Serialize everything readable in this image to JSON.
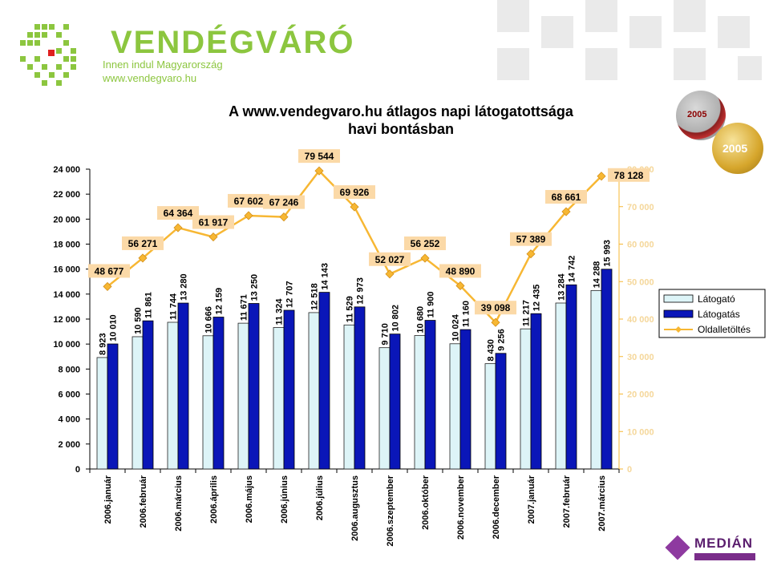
{
  "header": {
    "brand": "VENDÉGVÁRÓ",
    "tagline": "Innen indul Magyarország",
    "site": "www.vendegvaro.hu"
  },
  "badges": {
    "first": "2005",
    "second": "2005"
  },
  "footer": {
    "logo_text": "MEDIÁN"
  },
  "chart_data": {
    "type": "bar",
    "title": [
      "A www.vendegvaro.hu átlagos napi látogatottsága",
      "havi bontásban"
    ],
    "categories": [
      "2006.január",
      "2006.február",
      "2006.március",
      "2006.április",
      "2006.május",
      "2006.június",
      "2006.július",
      "2006.augusztus",
      "2006.szeptember",
      "2006.október",
      "2006.november",
      "2006.december",
      "2007.január",
      "2007.február",
      "2007.március"
    ],
    "series": [
      {
        "name": "Látogató",
        "type": "bar",
        "axis": "left",
        "color": "#ddf4f7",
        "values": [
          8923,
          10590,
          11744,
          10666,
          11671,
          11324,
          12518,
          11529,
          9710,
          10680,
          10024,
          8430,
          11217,
          13284,
          14288
        ]
      },
      {
        "name": "Látogatás",
        "type": "bar",
        "axis": "left",
        "color": "#0a16b8",
        "values": [
          10010,
          11861,
          13280,
          12159,
          13250,
          12707,
          14143,
          12973,
          10802,
          11900,
          11160,
          9256,
          12435,
          14742,
          15993
        ]
      },
      {
        "name": "Oldalletöltés",
        "type": "line",
        "axis": "right",
        "color": "#f7b733",
        "values": [
          48677,
          56271,
          64364,
          61917,
          67602,
          67246,
          79544,
          69926,
          52027,
          56252,
          48890,
          39098,
          57389,
          68661,
          78128
        ]
      }
    ],
    "ylim_left": [
      0,
      24000
    ],
    "ylim_right": [
      0,
      80000
    ],
    "ticks_left": [
      "0",
      "2 000",
      "4 000",
      "6 000",
      "8 000",
      "10 000",
      "12 000",
      "14 000",
      "16 000",
      "18 000",
      "20 000",
      "22 000",
      "24 000"
    ],
    "ticks_right": [
      "0",
      "10 000",
      "20 000",
      "30 000",
      "40 000",
      "50 000",
      "60 000",
      "70 000",
      "80 000"
    ],
    "value_labels": {
      "Látogató": [
        "8 923",
        "10 590",
        "11 744",
        "10 666",
        "11 671",
        "11 324",
        "12 518",
        "11 529",
        "9 710",
        "10 680",
        "10 024",
        "8 430",
        "11 217",
        "13 284",
        "14 288"
      ],
      "Látogatás": [
        "10 010",
        "11 861",
        "13 280",
        "12 159",
        "13 250",
        "12 707",
        "14 143",
        "12 973",
        "10 802",
        "11 900",
        "11 160",
        "9 256",
        "12 435",
        "14 742",
        "15 993"
      ],
      "Oldalletöltés": [
        "48 677",
        "56 271",
        "64 364",
        "61 917",
        "67 602",
        "67 246",
        "79 544",
        "69 926",
        "52 027",
        "56 252",
        "48 890",
        "39 098",
        "57 389",
        "68 661",
        "78 128"
      ]
    },
    "legend_position": "right",
    "grid": false
  }
}
